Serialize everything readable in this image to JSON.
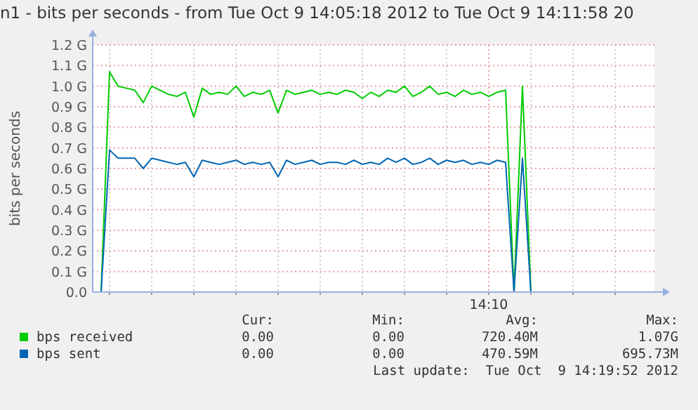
{
  "chart_data": {
    "type": "line",
    "title": "n1 - bits per seconds - from Tue Oct  9 14:05:18 2012 to Tue Oct  9 14:11:58 20",
    "ylabel": "bits per seconds",
    "categories": [
      null,
      null,
      null,
      null,
      null,
      null,
      null,
      null,
      null,
      null,
      null,
      null,
      null,
      null,
      null,
      null,
      null,
      null,
      null,
      null,
      null,
      null,
      null,
      null,
      null,
      null,
      null,
      null,
      null,
      null,
      null,
      null,
      null,
      null,
      null,
      null,
      null,
      null,
      null,
      null,
      null,
      null,
      null,
      null,
      null,
      null,
      null,
      "14:10",
      null,
      null,
      null,
      null,
      null,
      null,
      null,
      null,
      null,
      null,
      null,
      null,
      null,
      null,
      null,
      null,
      null,
      null,
      null
    ],
    "series": [
      {
        "name": "bps received",
        "color": "#00cc00",
        "values": [
          0,
          0,
          1.07,
          1.0,
          0.99,
          0.98,
          0.92,
          1.0,
          0.98,
          0.96,
          0.95,
          0.97,
          0.85,
          0.99,
          0.96,
          0.97,
          0.96,
          1.0,
          0.95,
          0.97,
          0.96,
          0.98,
          0.87,
          0.98,
          0.96,
          0.97,
          0.98,
          0.96,
          0.97,
          0.96,
          0.98,
          0.97,
          0.94,
          0.97,
          0.95,
          0.98,
          0.97,
          1.0,
          0.95,
          0.97,
          1.0,
          0.96,
          0.97,
          0.95,
          0.98,
          0.96,
          0.97,
          0.95,
          0.97,
          0.98,
          0,
          1.0,
          0,
          null,
          null,
          null,
          null,
          null,
          null,
          null,
          null,
          null,
          null,
          null,
          null,
          null,
          null
        ]
      },
      {
        "name": "bps sent",
        "color": "#0066b3",
        "values": [
          0,
          0,
          0.69,
          0.65,
          0.65,
          0.65,
          0.6,
          0.65,
          0.64,
          0.63,
          0.62,
          0.63,
          0.56,
          0.64,
          0.63,
          0.62,
          0.63,
          0.64,
          0.62,
          0.63,
          0.62,
          0.63,
          0.56,
          0.64,
          0.62,
          0.63,
          0.64,
          0.62,
          0.63,
          0.63,
          0.62,
          0.64,
          0.62,
          0.63,
          0.62,
          0.65,
          0.63,
          0.65,
          0.62,
          0.63,
          0.65,
          0.62,
          0.64,
          0.63,
          0.64,
          0.62,
          0.63,
          0.62,
          0.64,
          0.63,
          0,
          0.65,
          0,
          0,
          0,
          0,
          0,
          0,
          0,
          0,
          0,
          0,
          0,
          0,
          0,
          0,
          0
        ]
      }
    ],
    "ylim": [
      0,
      1.2
    ],
    "yticks": [
      {
        "value": 0,
        "label": "0.0"
      },
      {
        "value": 0.1,
        "label": "0.1 G"
      },
      {
        "value": 0.2,
        "label": "0.2 G"
      },
      {
        "value": 0.3,
        "label": "0.3 G"
      },
      {
        "value": 0.4,
        "label": "0.4 G"
      },
      {
        "value": 0.5,
        "label": "0.5 G"
      },
      {
        "value": 0.6,
        "label": "0.6 G"
      },
      {
        "value": 0.7,
        "label": "0.7 G"
      },
      {
        "value": 0.8,
        "label": "0.8 G"
      },
      {
        "value": 0.9,
        "label": "0.9 G"
      },
      {
        "value": 1.0,
        "label": "1.0 G"
      },
      {
        "value": 1.1,
        "label": "1.1 G"
      },
      {
        "value": 1.2,
        "label": "1.2 G"
      }
    ],
    "grid": true,
    "legend": "bottom",
    "marker": "none",
    "line_style": "solid",
    "annotations": [
      "Cur:",
      "Min:",
      "Avg:",
      "Max:",
      "0.00",
      "0.00",
      "720.40M",
      "1.07G",
      "0.00",
      "0.00",
      "470.59M",
      "695.73M",
      "Last update:  Tue Oct  9 14:19:52 2012"
    ]
  }
}
